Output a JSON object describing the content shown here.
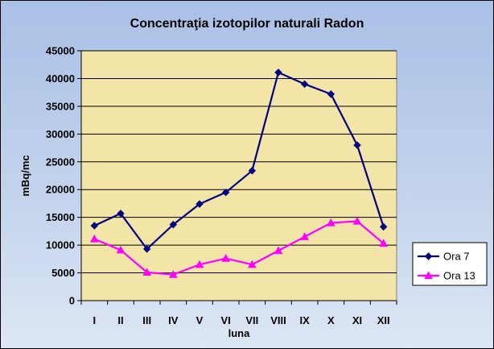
{
  "chart_data": {
    "type": "line",
    "title": "Concentraţia izotopilor naturali Radon",
    "xlabel": "luna",
    "ylabel": "mBq/mc",
    "categories": [
      "I",
      "II",
      "III",
      "IV",
      "V",
      "VI",
      "VII",
      "VIII",
      "IX",
      "X",
      "XI",
      "XII"
    ],
    "ylim": [
      0,
      45000
    ],
    "yticks": [
      0,
      5000,
      10000,
      15000,
      20000,
      25000,
      30000,
      35000,
      40000,
      45000
    ],
    "grid": true,
    "legend_position": "right",
    "plot_background": "#f3e4a7",
    "series": [
      {
        "name": "Ora 7",
        "color": "#000080",
        "marker": "diamond",
        "values": [
          13500,
          15700,
          9300,
          13700,
          17400,
          19500,
          23400,
          41100,
          39000,
          37200,
          28000,
          13300
        ]
      },
      {
        "name": "Ora 13",
        "color": "#ff00ff",
        "marker": "triangle",
        "values": [
          11100,
          9100,
          5100,
          4700,
          6500,
          7600,
          6500,
          9000,
          11500,
          14000,
          14300,
          10300
        ]
      }
    ]
  }
}
